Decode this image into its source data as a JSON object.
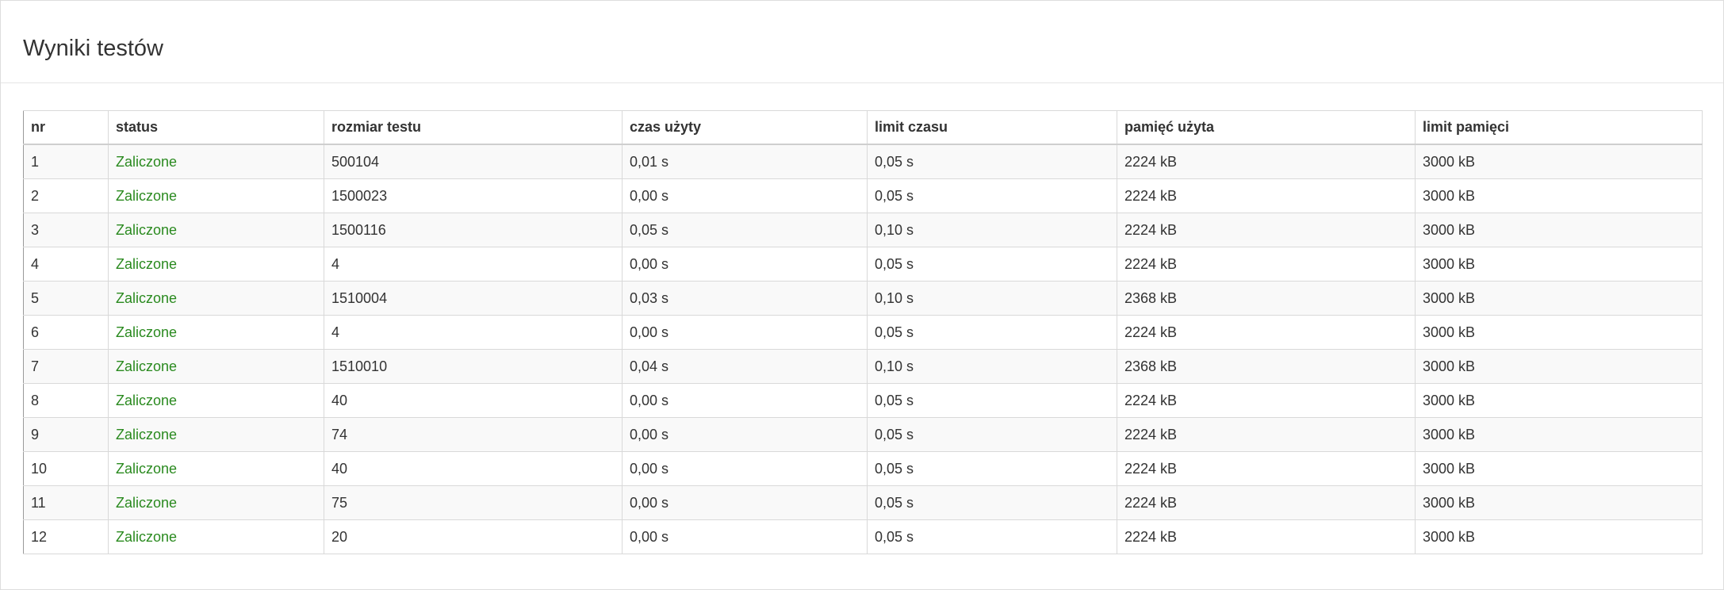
{
  "panel": {
    "title": "Wyniki testów"
  },
  "colors": {
    "status_ok": "#2a8a1f",
    "text": "#333333",
    "stripe": "#f9f9f9"
  },
  "table": {
    "headers": [
      "nr",
      "status",
      "rozmiar testu",
      "czas użyty",
      "limit czasu",
      "pamięć użyta",
      "limit pamięci"
    ],
    "rows": [
      [
        "1",
        "Zaliczone",
        "500104",
        "0,01 s",
        "0,05 s",
        "2224 kB",
        "3000 kB"
      ],
      [
        "2",
        "Zaliczone",
        "1500023",
        "0,00 s",
        "0,05 s",
        "2224 kB",
        "3000 kB"
      ],
      [
        "3",
        "Zaliczone",
        "1500116",
        "0,05 s",
        "0,10 s",
        "2224 kB",
        "3000 kB"
      ],
      [
        "4",
        "Zaliczone",
        "4",
        "0,00 s",
        "0,05 s",
        "2224 kB",
        "3000 kB"
      ],
      [
        "5",
        "Zaliczone",
        "1510004",
        "0,03 s",
        "0,10 s",
        "2368 kB",
        "3000 kB"
      ],
      [
        "6",
        "Zaliczone",
        "4",
        "0,00 s",
        "0,05 s",
        "2224 kB",
        "3000 kB"
      ],
      [
        "7",
        "Zaliczone",
        "1510010",
        "0,04 s",
        "0,10 s",
        "2368 kB",
        "3000 kB"
      ],
      [
        "8",
        "Zaliczone",
        "40",
        "0,00 s",
        "0,05 s",
        "2224 kB",
        "3000 kB"
      ],
      [
        "9",
        "Zaliczone",
        "74",
        "0,00 s",
        "0,05 s",
        "2224 kB",
        "3000 kB"
      ],
      [
        "10",
        "Zaliczone",
        "40",
        "0,00 s",
        "0,05 s",
        "2224 kB",
        "3000 kB"
      ],
      [
        "11",
        "Zaliczone",
        "75",
        "0,00 s",
        "0,05 s",
        "2224 kB",
        "3000 kB"
      ],
      [
        "12",
        "Zaliczone",
        "20",
        "0,00 s",
        "0,05 s",
        "2224 kB",
        "3000 kB"
      ]
    ]
  }
}
